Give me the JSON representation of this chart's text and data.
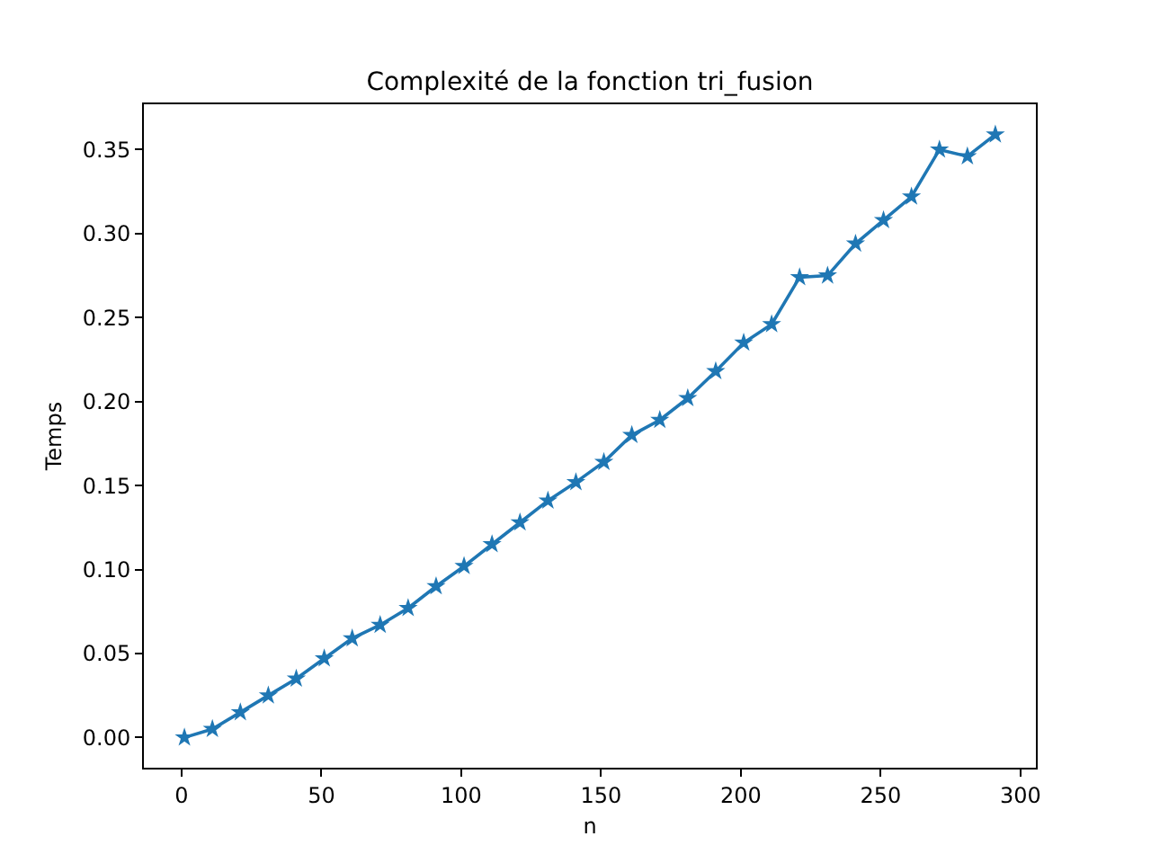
{
  "chart_data": {
    "type": "line",
    "title": "Complexité de la fonction tri_fusion",
    "xlabel": "n",
    "ylabel": "Temps",
    "x": [
      1,
      11,
      21,
      31,
      41,
      51,
      61,
      71,
      81,
      91,
      101,
      111,
      121,
      131,
      141,
      151,
      161,
      171,
      181,
      191,
      201,
      211,
      221,
      231,
      241,
      251,
      261,
      271,
      281,
      291
    ],
    "series": [
      {
        "color": "#1f77b4",
        "values": [
          0.0,
          0.005,
          0.015,
          0.025,
          0.035,
          0.047,
          0.059,
          0.067,
          0.077,
          0.09,
          0.102,
          0.115,
          0.128,
          0.141,
          0.152,
          0.164,
          0.18,
          0.189,
          0.202,
          0.218,
          0.235,
          0.246,
          0.274,
          0.275,
          0.294,
          0.308,
          0.322,
          0.35,
          0.346,
          0.359
        ]
      }
    ],
    "xlim": [
      -13.5,
      305.5
    ],
    "xticks": [
      0,
      50,
      100,
      150,
      200,
      250,
      300
    ],
    "ylim": [
      -0.018,
      0.377
    ],
    "yticks": [
      {
        "value": 0,
        "label": "0.00"
      },
      {
        "value": 0.05,
        "label": "0.05"
      },
      {
        "value": 0.1,
        "label": "0.10"
      },
      {
        "value": 0.15,
        "label": "0.15"
      },
      {
        "value": 0.2,
        "label": "0.20"
      },
      {
        "value": 0.25,
        "label": "0.25"
      },
      {
        "value": 0.3,
        "label": "0.30"
      },
      {
        "value": 0.35,
        "label": "0.35"
      }
    ],
    "marker": "star",
    "line_style": "solid",
    "grid": false
  }
}
